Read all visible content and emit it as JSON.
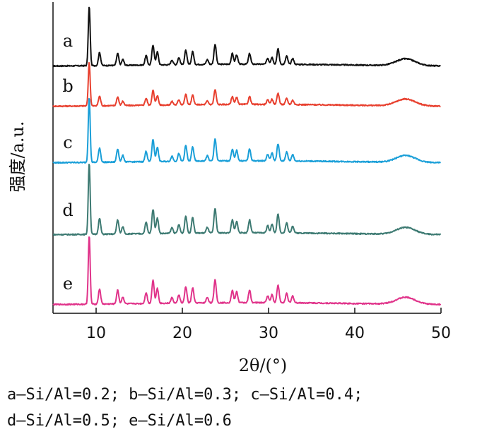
{
  "chart_data": {
    "type": "line",
    "xlabel": "2θ/(°)",
    "ylabel": "强度/a.u.",
    "xlim": [
      5,
      50
    ],
    "xticks": [
      10,
      20,
      30,
      40,
      50
    ],
    "grid": false,
    "legend": "none",
    "peaks": [
      {
        "x": 9.2,
        "h": 1.0
      },
      {
        "x": 10.4,
        "h": 0.22
      },
      {
        "x": 12.5,
        "h": 0.2
      },
      {
        "x": 13.1,
        "h": 0.1
      },
      {
        "x": 15.8,
        "h": 0.16
      },
      {
        "x": 16.6,
        "h": 0.34
      },
      {
        "x": 17.1,
        "h": 0.22
      },
      {
        "x": 18.8,
        "h": 0.08
      },
      {
        "x": 19.6,
        "h": 0.12
      },
      {
        "x": 20.4,
        "h": 0.24
      },
      {
        "x": 21.2,
        "h": 0.22
      },
      {
        "x": 22.9,
        "h": 0.08
      },
      {
        "x": 23.8,
        "h": 0.34
      },
      {
        "x": 25.8,
        "h": 0.18
      },
      {
        "x": 26.3,
        "h": 0.16
      },
      {
        "x": 27.8,
        "h": 0.18
      },
      {
        "x": 29.9,
        "h": 0.1
      },
      {
        "x": 30.4,
        "h": 0.12
      },
      {
        "x": 31.1,
        "h": 0.26
      },
      {
        "x": 32.1,
        "h": 0.14
      },
      {
        "x": 32.8,
        "h": 0.1
      }
    ],
    "broad_hump": {
      "x": 45.9,
      "h": 0.11
    },
    "series": [
      {
        "name": "a",
        "color": "#111111",
        "peak_scale": 0.95
      },
      {
        "name": "b",
        "color": "#e8402f",
        "peak_scale": 0.7
      },
      {
        "name": "c",
        "color": "#1a9fd8",
        "peak_scale": 1.05
      },
      {
        "name": "d",
        "color": "#3d7a72",
        "peak_scale": 1.15
      },
      {
        "name": "e",
        "color": "#e0338a",
        "peak_scale": 1.1
      }
    ]
  },
  "caption": {
    "line1": "a—Si/Al=0.2; b—Si/Al=0.3; c—Si/Al=0.4;",
    "line2": "d—Si/Al=0.5; e—Si/Al=0.6"
  }
}
